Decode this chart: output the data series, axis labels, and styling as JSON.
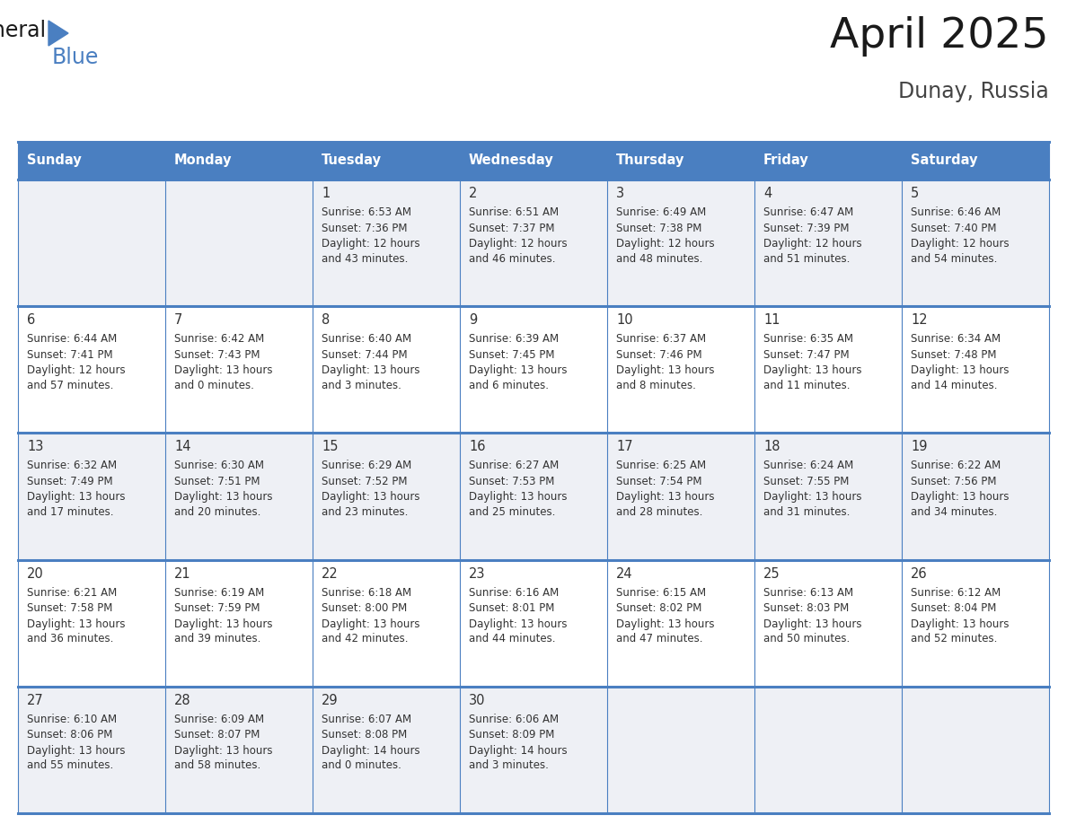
{
  "title": "April 2025",
  "subtitle": "Dunay, Russia",
  "days_of_week": [
    "Sunday",
    "Monday",
    "Tuesday",
    "Wednesday",
    "Thursday",
    "Friday",
    "Saturday"
  ],
  "header_bg_color": "#4a7fc1",
  "header_text_color": "#FFFFFF",
  "cell_bg_color_even": "#eef0f5",
  "cell_bg_color_odd": "#FFFFFF",
  "cell_text_color": "#333333",
  "border_color": "#4a7fc1",
  "title_color": "#1a1a1a",
  "subtitle_color": "#444444",
  "calendar": [
    [
      {
        "day": null,
        "sunrise": null,
        "sunset": null,
        "daylight": null
      },
      {
        "day": null,
        "sunrise": null,
        "sunset": null,
        "daylight": null
      },
      {
        "day": 1,
        "sunrise": "6:53 AM",
        "sunset": "7:36 PM",
        "daylight": "12 hours\nand 43 minutes."
      },
      {
        "day": 2,
        "sunrise": "6:51 AM",
        "sunset": "7:37 PM",
        "daylight": "12 hours\nand 46 minutes."
      },
      {
        "day": 3,
        "sunrise": "6:49 AM",
        "sunset": "7:38 PM",
        "daylight": "12 hours\nand 48 minutes."
      },
      {
        "day": 4,
        "sunrise": "6:47 AM",
        "sunset": "7:39 PM",
        "daylight": "12 hours\nand 51 minutes."
      },
      {
        "day": 5,
        "sunrise": "6:46 AM",
        "sunset": "7:40 PM",
        "daylight": "12 hours\nand 54 minutes."
      }
    ],
    [
      {
        "day": 6,
        "sunrise": "6:44 AM",
        "sunset": "7:41 PM",
        "daylight": "12 hours\nand 57 minutes."
      },
      {
        "day": 7,
        "sunrise": "6:42 AM",
        "sunset": "7:43 PM",
        "daylight": "13 hours\nand 0 minutes."
      },
      {
        "day": 8,
        "sunrise": "6:40 AM",
        "sunset": "7:44 PM",
        "daylight": "13 hours\nand 3 minutes."
      },
      {
        "day": 9,
        "sunrise": "6:39 AM",
        "sunset": "7:45 PM",
        "daylight": "13 hours\nand 6 minutes."
      },
      {
        "day": 10,
        "sunrise": "6:37 AM",
        "sunset": "7:46 PM",
        "daylight": "13 hours\nand 8 minutes."
      },
      {
        "day": 11,
        "sunrise": "6:35 AM",
        "sunset": "7:47 PM",
        "daylight": "13 hours\nand 11 minutes."
      },
      {
        "day": 12,
        "sunrise": "6:34 AM",
        "sunset": "7:48 PM",
        "daylight": "13 hours\nand 14 minutes."
      }
    ],
    [
      {
        "day": 13,
        "sunrise": "6:32 AM",
        "sunset": "7:49 PM",
        "daylight": "13 hours\nand 17 minutes."
      },
      {
        "day": 14,
        "sunrise": "6:30 AM",
        "sunset": "7:51 PM",
        "daylight": "13 hours\nand 20 minutes."
      },
      {
        "day": 15,
        "sunrise": "6:29 AM",
        "sunset": "7:52 PM",
        "daylight": "13 hours\nand 23 minutes."
      },
      {
        "day": 16,
        "sunrise": "6:27 AM",
        "sunset": "7:53 PM",
        "daylight": "13 hours\nand 25 minutes."
      },
      {
        "day": 17,
        "sunrise": "6:25 AM",
        "sunset": "7:54 PM",
        "daylight": "13 hours\nand 28 minutes."
      },
      {
        "day": 18,
        "sunrise": "6:24 AM",
        "sunset": "7:55 PM",
        "daylight": "13 hours\nand 31 minutes."
      },
      {
        "day": 19,
        "sunrise": "6:22 AM",
        "sunset": "7:56 PM",
        "daylight": "13 hours\nand 34 minutes."
      }
    ],
    [
      {
        "day": 20,
        "sunrise": "6:21 AM",
        "sunset": "7:58 PM",
        "daylight": "13 hours\nand 36 minutes."
      },
      {
        "day": 21,
        "sunrise": "6:19 AM",
        "sunset": "7:59 PM",
        "daylight": "13 hours\nand 39 minutes."
      },
      {
        "day": 22,
        "sunrise": "6:18 AM",
        "sunset": "8:00 PM",
        "daylight": "13 hours\nand 42 minutes."
      },
      {
        "day": 23,
        "sunrise": "6:16 AM",
        "sunset": "8:01 PM",
        "daylight": "13 hours\nand 44 minutes."
      },
      {
        "day": 24,
        "sunrise": "6:15 AM",
        "sunset": "8:02 PM",
        "daylight": "13 hours\nand 47 minutes."
      },
      {
        "day": 25,
        "sunrise": "6:13 AM",
        "sunset": "8:03 PM",
        "daylight": "13 hours\nand 50 minutes."
      },
      {
        "day": 26,
        "sunrise": "6:12 AM",
        "sunset": "8:04 PM",
        "daylight": "13 hours\nand 52 minutes."
      }
    ],
    [
      {
        "day": 27,
        "sunrise": "6:10 AM",
        "sunset": "8:06 PM",
        "daylight": "13 hours\nand 55 minutes."
      },
      {
        "day": 28,
        "sunrise": "6:09 AM",
        "sunset": "8:07 PM",
        "daylight": "13 hours\nand 58 minutes."
      },
      {
        "day": 29,
        "sunrise": "6:07 AM",
        "sunset": "8:08 PM",
        "daylight": "14 hours\nand 0 minutes."
      },
      {
        "day": 30,
        "sunrise": "6:06 AM",
        "sunset": "8:09 PM",
        "daylight": "14 hours\nand 3 minutes."
      },
      {
        "day": null,
        "sunrise": null,
        "sunset": null,
        "daylight": null
      },
      {
        "day": null,
        "sunrise": null,
        "sunset": null,
        "daylight": null
      },
      {
        "day": null,
        "sunrise": null,
        "sunset": null,
        "daylight": null
      }
    ]
  ],
  "logo_triangle_color": "#4a7fc1"
}
